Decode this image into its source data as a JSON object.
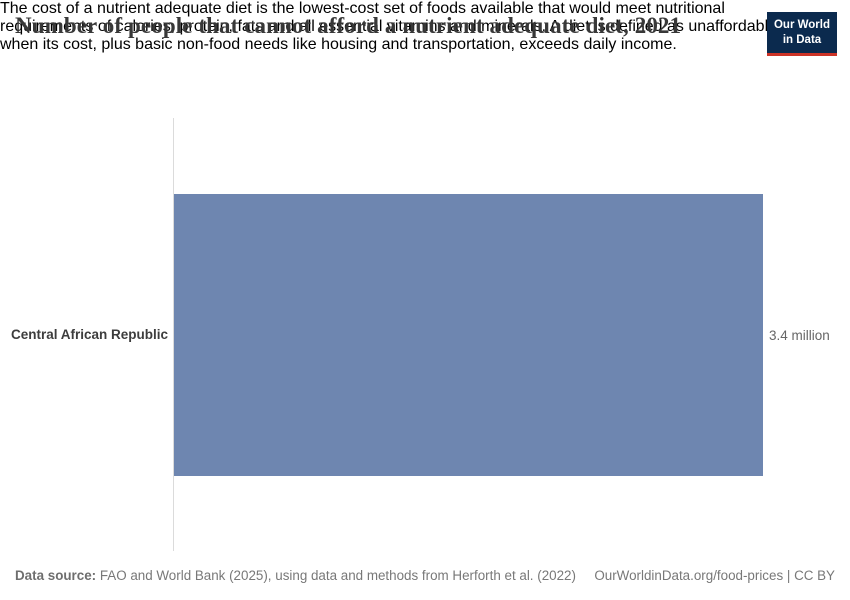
{
  "header": {
    "title": "Number of people that cannot afford a nutrient adequate diet, 2021",
    "subtitle_lines": [
      "The cost of a nutrient adequate diet is the lowest-cost set of foods available that would meet nutritional",
      "requirements of calories, protein, fats and all essential vitamins and minerals. A diet is defined as unaffordable",
      "when its cost, plus basic non-food needs like housing and transportation, exceeds daily income."
    ],
    "logo": {
      "line1": "Our World",
      "line2": "in Data"
    }
  },
  "chart_data": {
    "type": "bar",
    "orientation": "horizontal",
    "title": "Number of people that cannot afford a nutrient adequate diet, 2021",
    "year": "2021",
    "categories": [
      "Central African Republic"
    ],
    "values": [
      3400000
    ],
    "value_labels": [
      "3.4 million"
    ],
    "xlabel": "",
    "ylabel": "",
    "xlim": [
      0,
      3400000
    ],
    "grid": false,
    "legend": false,
    "bar_color": "#6e86b0"
  },
  "footer": {
    "datasource_label": "Data source:",
    "datasource_text": " FAO and World Bank (2025), using data and methods from Herforth et al. (2022)",
    "link_text": "OurWorldinData.org/food-prices | CC BY"
  },
  "colors": {
    "bar": "#6e86b0",
    "logo_background": "#0b2a4e",
    "logo_accent": "#cc3327",
    "title_text": "#383838",
    "subtitle_text": "#555555",
    "axis_line": "#dbdbdb",
    "footer_text": "#787878"
  }
}
